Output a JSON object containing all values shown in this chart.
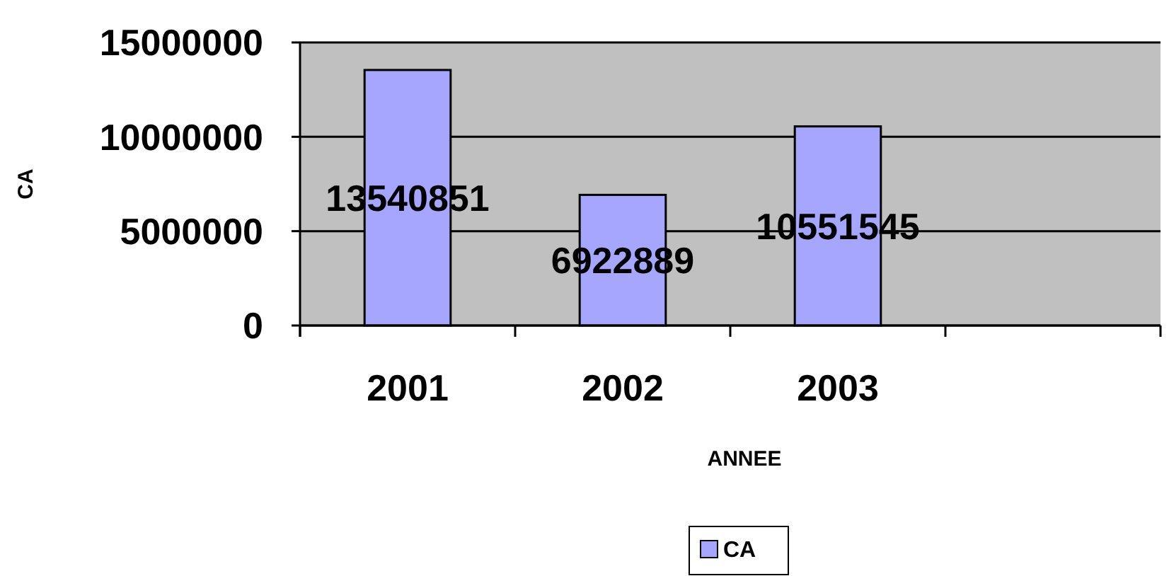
{
  "chart_data": {
    "type": "bar",
    "xlabel": "ANNEE",
    "ylabel": "CA",
    "categories": [
      "2001",
      "2002",
      "2003",
      null
    ],
    "series": [
      {
        "name": "CA",
        "color": "#a6a6ff",
        "values": [
          13540851,
          6922889,
          10551545,
          null
        ]
      }
    ],
    "ylim": [
      0,
      15000000
    ],
    "yticks": [
      0,
      5000000,
      10000000,
      15000000
    ],
    "grid": "y",
    "legend": "bottom",
    "data_labels": true
  }
}
